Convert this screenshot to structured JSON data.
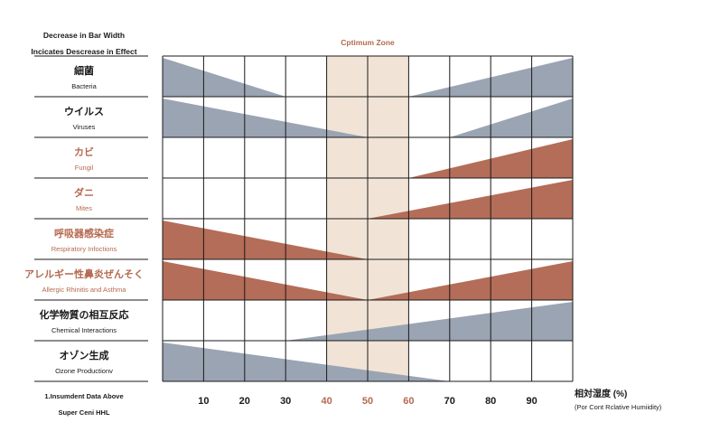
{
  "header_note": [
    "Decrease in Bar Width",
    "Incicates Descrease in Effect"
  ],
  "optimum_label": "Cptimum Zone",
  "footnote": [
    "1.Insumdent Data Above",
    "Super Ceni HHL"
  ],
  "axis_unit": "相対湿度 (%)",
  "axis_unit_en": "(Por Cont Rclative Humiidity)",
  "colors": {
    "blue": "#9aa4b3",
    "red": "#b46d58",
    "optimum": "#f1e4d6",
    "accent_text": "#b5694f",
    "grid": "#1a1a1a"
  },
  "chart_data": {
    "type": "area",
    "x_ticks": [
      10,
      20,
      30,
      40,
      50,
      60,
      70,
      80,
      90
    ],
    "highlighted_ticks": [
      40,
      50,
      60
    ],
    "xlim": [
      0,
      100
    ],
    "optimum_zone": [
      40,
      60
    ],
    "series": [
      {
        "name": "Bacteria",
        "label_jp": "細菌",
        "label_en": "Bacteria",
        "color": "blue",
        "points": [
          [
            0,
            1.0
          ],
          [
            30,
            0
          ],
          [
            60,
            0
          ],
          [
            100,
            1.0
          ]
        ]
      },
      {
        "name": "Viruses",
        "label_jp": "ウイルス",
        "label_en": "Viruses",
        "color": "blue",
        "points": [
          [
            0,
            1.0
          ],
          [
            50,
            0
          ],
          [
            70,
            0
          ],
          [
            100,
            1.0
          ]
        ]
      },
      {
        "name": "Fungii",
        "label_jp": "カビ",
        "label_en": "Fungil",
        "color": "red",
        "points": [
          [
            60,
            0
          ],
          [
            100,
            1.0
          ]
        ]
      },
      {
        "name": "Mites",
        "label_jp": "ダニ",
        "label_en": "Mites",
        "color": "red",
        "points": [
          [
            50,
            0
          ],
          [
            100,
            1.0
          ]
        ]
      },
      {
        "name": "Respiratory Infections",
        "label_jp": "呼吸器感染症",
        "label_en": "Respiratory Infoctions",
        "color": "red",
        "points": [
          [
            0,
            1.0
          ],
          [
            50,
            0
          ]
        ]
      },
      {
        "name": "Allergic Rhinitis and Asthma",
        "label_jp": "アレルギー性鼻炎ぜんそく",
        "label_en": "Allergic Rhinitis and Asthma",
        "color": "red",
        "points": [
          [
            0,
            1.0
          ],
          [
            50,
            0
          ],
          [
            100,
            1.0
          ]
        ]
      },
      {
        "name": "Chemical Interactions",
        "label_jp": "化学物質の相互反応",
        "label_en": "Chemical Interactions",
        "color": "blue",
        "points": [
          [
            30,
            0
          ],
          [
            100,
            1.0
          ]
        ]
      },
      {
        "name": "Ozone Production",
        "label_jp": "オゾン生成",
        "label_en": "Ozone Productionv",
        "color": "blue",
        "points": [
          [
            0,
            1.0
          ],
          [
            70,
            0
          ]
        ]
      }
    ]
  }
}
